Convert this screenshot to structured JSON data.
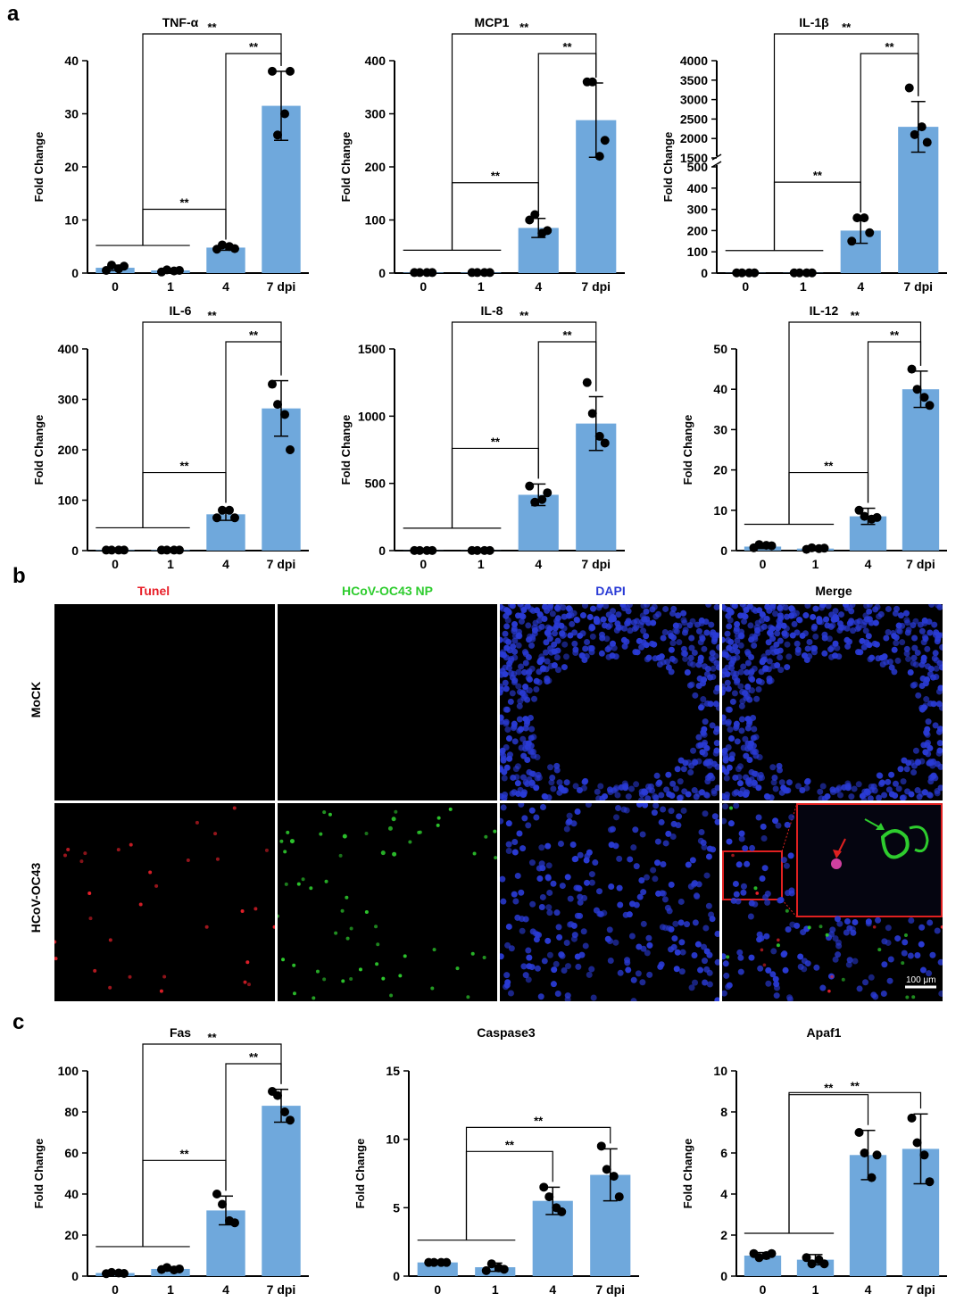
{
  "panel_labels": {
    "a": "a",
    "b": "b",
    "c": "c"
  },
  "colors": {
    "bar": "#6fa8dc",
    "dot": "#000000",
    "tunel": "#e8202a",
    "np": "#2ecc2e",
    "dapi": "#2a3bd6",
    "merge": "#111111",
    "inset_border": "#e02020"
  },
  "chart_data": [
    {
      "type": "bar",
      "title": "TNF-α",
      "ylabel": "Fold Change",
      "categories": [
        "0",
        "1",
        "4",
        "7 dpi"
      ],
      "values": [
        1.0,
        0.5,
        4.8,
        31.5
      ],
      "sd": [
        0.5,
        0.2,
        0.5,
        6.5
      ],
      "points": [
        [
          0.5,
          1.5,
          0.8,
          1.3
        ],
        [
          0.2,
          0.6,
          0.4,
          0.5
        ],
        [
          4.5,
          5.3,
          5.0,
          4.6
        ],
        [
          38,
          26,
          30,
          38
        ]
      ],
      "yticks": [
        0,
        10,
        20,
        30,
        40
      ],
      "ylim": [
        0,
        40
      ],
      "sig": [
        {
          "label": "**",
          "from": 2,
          "to": 3,
          "level": 1
        },
        {
          "label": "**",
          "from": 0,
          "to": 3,
          "level": 2
        },
        {
          "label": "**",
          "from": 0,
          "to": 2,
          "level": 0
        }
      ]
    },
    {
      "type": "bar",
      "title": "MCP1",
      "ylabel": "Fold Change",
      "categories": [
        "0",
        "1",
        "4",
        "7 dpi"
      ],
      "values": [
        1,
        1,
        85,
        288
      ],
      "sd": [
        1,
        1,
        18,
        70
      ],
      "points": [
        [
          1,
          1,
          1,
          1
        ],
        [
          1,
          1,
          1,
          1
        ],
        [
          100,
          110,
          75,
          80
        ],
        [
          360,
          360,
          220,
          250
        ]
      ],
      "yticks": [
        0,
        100,
        200,
        300,
        400
      ],
      "ylim": [
        0,
        400
      ],
      "sig": [
        {
          "label": "**",
          "from": 2,
          "to": 3,
          "level": 1
        },
        {
          "label": "**",
          "from": 0,
          "to": 3,
          "level": 2
        },
        {
          "label": "**",
          "from": 0,
          "to": 2,
          "level": 0
        }
      ]
    },
    {
      "type": "bar",
      "title": "IL-1β",
      "ylabel": "Fold Change",
      "categories": [
        "0",
        "1",
        "4",
        "7 dpi"
      ],
      "values": [
        1,
        1,
        200,
        2300
      ],
      "sd": [
        1,
        1,
        60,
        650
      ],
      "points": [
        [
          1,
          1,
          1,
          1
        ],
        [
          1,
          1,
          1,
          1
        ],
        [
          150,
          260,
          260,
          190
        ],
        [
          3300,
          2100,
          2300,
          1900
        ]
      ],
      "yticks": [
        0,
        100,
        200,
        300,
        400,
        500,
        1500,
        2000,
        2500,
        3000,
        3500,
        4000
      ],
      "ylim": [
        0,
        4000
      ],
      "axis_break": {
        "low_max": 500,
        "high_min": 1500
      },
      "sig": [
        {
          "label": "**",
          "from": 2,
          "to": 3,
          "level": 1
        },
        {
          "label": "**",
          "from": 0,
          "to": 3,
          "level": 2
        },
        {
          "label": "**",
          "from": 0,
          "to": 2,
          "level": 0
        }
      ]
    },
    {
      "type": "bar",
      "title": "IL-6",
      "ylabel": "Fold Change",
      "categories": [
        "0",
        "1",
        "4",
        "7 dpi"
      ],
      "values": [
        1,
        1,
        72,
        282
      ],
      "sd": [
        1,
        1,
        12,
        55
      ],
      "points": [
        [
          1,
          1,
          1,
          1
        ],
        [
          1,
          1,
          1,
          1
        ],
        [
          65,
          80,
          80,
          65
        ],
        [
          330,
          290,
          270,
          200
        ]
      ],
      "yticks": [
        0,
        100,
        200,
        300,
        400
      ],
      "ylim": [
        0,
        400
      ],
      "sig": [
        {
          "label": "**",
          "from": 2,
          "to": 3,
          "level": 1
        },
        {
          "label": "**",
          "from": 0,
          "to": 3,
          "level": 2
        },
        {
          "label": "**",
          "from": 0,
          "to": 2,
          "level": 0
        }
      ]
    },
    {
      "type": "bar",
      "title": "IL-8",
      "ylabel": "Fold Change",
      "categories": [
        "0",
        "1",
        "4",
        "7 dpi"
      ],
      "values": [
        1,
        1,
        415,
        945
      ],
      "sd": [
        1,
        1,
        80,
        200
      ],
      "points": [
        [
          1,
          1,
          1,
          1
        ],
        [
          1,
          1,
          1,
          1
        ],
        [
          480,
          360,
          380,
          430
        ],
        [
          1250,
          1020,
          850,
          800
        ]
      ],
      "yticks": [
        0,
        500,
        1000,
        1500
      ],
      "ylim": [
        0,
        1500
      ],
      "sig": [
        {
          "label": "**",
          "from": 2,
          "to": 3,
          "level": 1
        },
        {
          "label": "**",
          "from": 0,
          "to": 3,
          "level": 2
        },
        {
          "label": "**",
          "from": 0,
          "to": 2,
          "level": 0
        }
      ]
    },
    {
      "type": "bar",
      "title": "IL-12",
      "ylabel": "Fold Change",
      "categories": [
        "0",
        "1",
        "4",
        "7 dpi"
      ],
      "values": [
        1,
        0.5,
        8.5,
        40
      ],
      "sd": [
        0.5,
        0.3,
        2.0,
        4.5
      ],
      "points": [
        [
          0.7,
          1.5,
          1.3,
          1.2
        ],
        [
          0.3,
          0.7,
          0.5,
          0.6
        ],
        [
          10,
          8.5,
          7.8,
          8.2
        ],
        [
          45,
          40,
          38,
          36
        ]
      ],
      "yticks": [
        0,
        10,
        20,
        30,
        40,
        50
      ],
      "ylim": [
        0,
        50
      ],
      "sig": [
        {
          "label": "**",
          "from": 2,
          "to": 3,
          "level": 1
        },
        {
          "label": "**",
          "from": 0,
          "to": 3,
          "level": 2
        },
        {
          "label": "**",
          "from": 0,
          "to": 2,
          "level": 0
        }
      ]
    },
    {
      "type": "bar",
      "title": "Fas",
      "ylabel": "Fold Change",
      "categories": [
        "0",
        "1",
        "4",
        "7 dpi"
      ],
      "values": [
        1.5,
        3.5,
        32,
        83
      ],
      "sd": [
        0.5,
        1.0,
        7,
        8
      ],
      "points": [
        [
          1.2,
          1.8,
          1.5,
          1.3
        ],
        [
          3.2,
          4.2,
          3.0,
          3.5
        ],
        [
          40,
          35,
          27,
          26
        ],
        [
          90,
          88,
          80,
          76
        ]
      ],
      "yticks": [
        0,
        20,
        40,
        60,
        80,
        100
      ],
      "ylim": [
        0,
        100
      ],
      "sig": [
        {
          "label": "**",
          "from": 2,
          "to": 3,
          "level": 1
        },
        {
          "label": "**",
          "from": 0,
          "to": 3,
          "level": 2
        },
        {
          "label": "**",
          "from": 0,
          "to": 2,
          "level": 0
        }
      ]
    },
    {
      "type": "bar",
      "title": "Caspase3",
      "ylabel": "Fold Change",
      "categories": [
        "0",
        "1",
        "4",
        "7 dpi"
      ],
      "values": [
        1,
        0.65,
        5.5,
        7.4
      ],
      "sd": [
        0.1,
        0.3,
        1.0,
        1.9
      ],
      "points": [
        [
          1,
          1,
          1,
          1
        ],
        [
          0.4,
          0.9,
          0.6,
          0.5
        ],
        [
          6.5,
          5.8,
          5.0,
          4.7
        ],
        [
          9.5,
          7.8,
          7.3,
          5.8
        ]
      ],
      "yticks": [
        0,
        5,
        10,
        15
      ],
      "ylim": [
        0,
        15
      ],
      "sig": [
        {
          "label": "**",
          "from": 0,
          "to": 3,
          "level": 1
        },
        {
          "label": "**",
          "from": 0,
          "to": 2,
          "level": 0
        }
      ]
    },
    {
      "type": "bar",
      "title": "Apaf1",
      "ylabel": "Fold Change",
      "categories": [
        "0",
        "1",
        "4",
        "7 dpi"
      ],
      "values": [
        1,
        0.8,
        5.9,
        6.2
      ],
      "sd": [
        0.15,
        0.25,
        1.2,
        1.7
      ],
      "points": [
        [
          1.1,
          0.9,
          1.0,
          1.1
        ],
        [
          0.9,
          0.6,
          0.8,
          0.6
        ],
        [
          7.0,
          6.0,
          4.8,
          5.9
        ],
        [
          7.7,
          6.5,
          5.9,
          4.6
        ]
      ],
      "yticks": [
        0,
        2,
        4,
        6,
        8,
        10
      ],
      "ylim": [
        0,
        10
      ],
      "sig": [
        {
          "label": "**",
          "from": 0,
          "to": 3,
          "level": 1
        },
        {
          "label": "**",
          "from": 0,
          "to": 2,
          "level": 0
        }
      ]
    }
  ],
  "microscopy": {
    "columns": [
      "Tunel",
      "HCoV-OC43 NP",
      "DAPI",
      "Merge"
    ],
    "rows": [
      "MoCK",
      "HCoV-OC43"
    ],
    "scale_bar": "100 μm"
  }
}
